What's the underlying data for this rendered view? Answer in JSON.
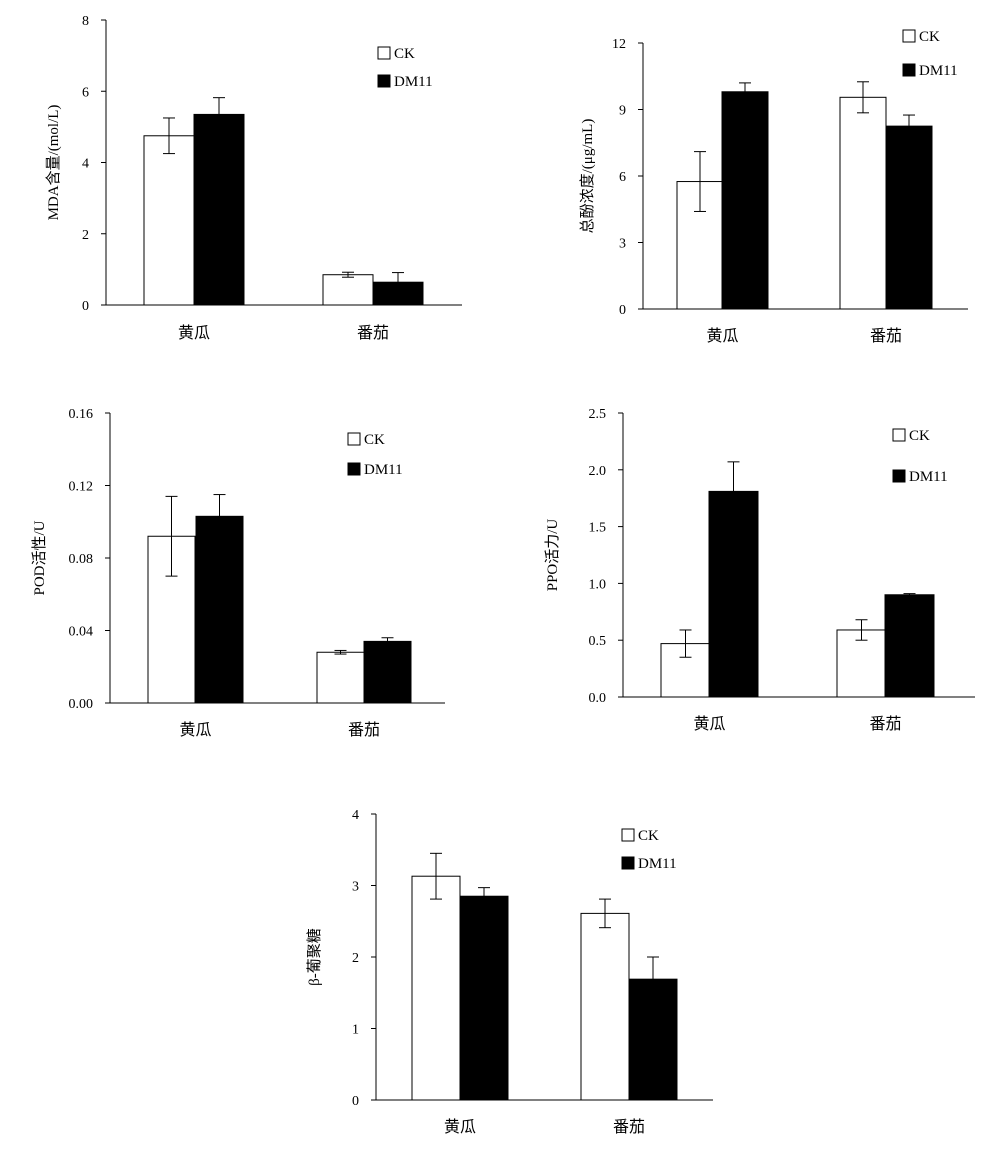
{
  "chart_data": [
    {
      "type": "bar",
      "ylabel": "MDA含量/(mol/L)",
      "categories": [
        "黄瓜",
        "番茄"
      ],
      "series": [
        {
          "name": "CK",
          "values": [
            4.75,
            0.85
          ],
          "errors": [
            0.5,
            0.07
          ]
        },
        {
          "name": "DM11",
          "values": [
            5.35,
            0.64
          ],
          "errors": [
            0.47,
            0.27
          ]
        }
      ],
      "ylim": [
        0,
        8
      ],
      "yticks": [
        0,
        2,
        4,
        6,
        8
      ],
      "ytick_labels": [
        "0",
        "2",
        "4",
        "6",
        "8"
      ],
      "legend": "top-right"
    },
    {
      "type": "bar",
      "ylabel": "总酚浓度/(μg/mL)",
      "categories": [
        "黄瓜",
        "番茄"
      ],
      "series": [
        {
          "name": "CK",
          "values": [
            5.75,
            9.55
          ],
          "errors": [
            1.35,
            0.7
          ]
        },
        {
          "name": "DM11",
          "values": [
            9.8,
            8.25
          ],
          "errors": [
            0.4,
            0.5
          ]
        }
      ],
      "ylim": [
        0,
        12
      ],
      "yticks": [
        0,
        3,
        6,
        9,
        12
      ],
      "ytick_labels": [
        "0",
        "3",
        "6",
        "9",
        "12"
      ],
      "legend": "top-right"
    },
    {
      "type": "bar",
      "ylabel": "POD活性/U",
      "categories": [
        "黄瓜",
        "番茄"
      ],
      "series": [
        {
          "name": "CK",
          "values": [
            0.092,
            0.028
          ],
          "errors": [
            0.022,
            0.001
          ]
        },
        {
          "name": "DM11",
          "values": [
            0.103,
            0.034
          ],
          "errors": [
            0.012,
            0.002
          ]
        }
      ],
      "ylim": [
        0,
        0.16
      ],
      "yticks": [
        0,
        0.04,
        0.08,
        0.12,
        0.16
      ],
      "ytick_labels": [
        "0.00",
        "0.04",
        "0.08",
        "0.12",
        "0.16"
      ],
      "legend": "top-right"
    },
    {
      "type": "bar",
      "ylabel": "PPO活力/U",
      "categories": [
        "黄瓜",
        "番茄"
      ],
      "series": [
        {
          "name": "CK",
          "values": [
            0.47,
            0.59
          ],
          "errors": [
            0.12,
            0.09
          ]
        },
        {
          "name": "DM11",
          "values": [
            1.81,
            0.9
          ],
          "errors": [
            0.26,
            0.01
          ]
        }
      ],
      "ylim": [
        0,
        2.5
      ],
      "yticks": [
        0,
        0.5,
        1.0,
        1.5,
        2.0,
        2.5
      ],
      "ytick_labels": [
        "0.0",
        "0.5",
        "1.0",
        "1.5",
        "2.0",
        "2.5"
      ],
      "legend": "top-right"
    },
    {
      "type": "bar",
      "ylabel": "β-葡聚糖",
      "categories": [
        "黄瓜",
        "番茄"
      ],
      "series": [
        {
          "name": "CK",
          "values": [
            3.13,
            2.61
          ],
          "errors": [
            0.32,
            0.2
          ]
        },
        {
          "name": "DM11",
          "values": [
            2.85,
            1.69
          ],
          "errors": [
            0.12,
            0.31
          ]
        }
      ],
      "ylim": [
        0,
        4
      ],
      "yticks": [
        0,
        1,
        2,
        3,
        4
      ],
      "ytick_labels": [
        "0",
        "1",
        "2",
        "3",
        "4"
      ],
      "legend": "top-right"
    }
  ],
  "colors": {
    "CK": "#ffffff",
    "DM11": "#000000",
    "stroke": "#000000"
  }
}
